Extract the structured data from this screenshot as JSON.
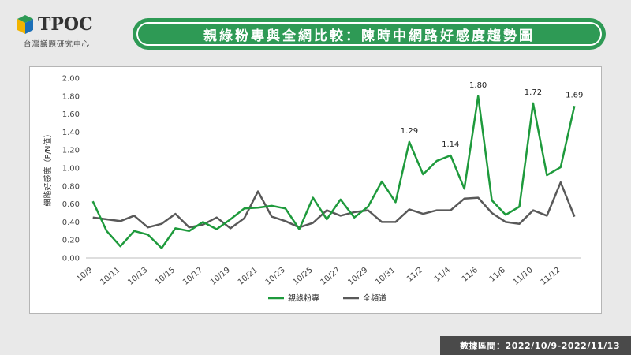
{
  "header": {
    "logo_text": "TPOC",
    "logo_subtitle": "台灣議題研究中心",
    "title": "親綠粉專與全網比較：陳時中網路好感度趨勢圖"
  },
  "footer": {
    "date_range": "數據區間：2022/10/9-2022/11/13"
  },
  "colors": {
    "accent": "#2e9a55",
    "series_green": "#1e9a3c",
    "series_gray": "#595959",
    "footer_bg": "#4a4a4a"
  },
  "chart_data": {
    "type": "line",
    "title": "",
    "ylabel": "網路好感度（P/N值）",
    "xlabel": "",
    "ylim": [
      0,
      2
    ],
    "yticks": [
      "0.00",
      "0.20",
      "0.40",
      "0.60",
      "0.80",
      "1.00",
      "1.20",
      "1.40",
      "1.60",
      "1.80",
      "2.00"
    ],
    "x": [
      "10/9",
      "10/10",
      "10/11",
      "10/12",
      "10/13",
      "10/14",
      "10/15",
      "10/16",
      "10/17",
      "10/18",
      "10/19",
      "10/20",
      "10/21",
      "10/22",
      "10/23",
      "10/24",
      "10/25",
      "10/26",
      "10/27",
      "10/28",
      "10/29",
      "10/30",
      "10/31",
      "11/1",
      "11/2",
      "11/3",
      "11/4",
      "11/5",
      "11/6",
      "11/7",
      "11/8",
      "11/9",
      "11/10",
      "11/11",
      "11/12",
      "11/13"
    ],
    "xtick_labels": [
      "10/9",
      "10/11",
      "10/13",
      "10/15",
      "10/17",
      "10/19",
      "10/21",
      "10/23",
      "10/25",
      "10/27",
      "10/29",
      "10/31",
      "11/2",
      "11/4",
      "11/6",
      "11/8",
      "11/10",
      "11/12"
    ],
    "series": [
      {
        "name": "親綠粉專",
        "color": "#1e9a3c",
        "values": [
          0.63,
          0.3,
          0.13,
          0.3,
          0.26,
          0.11,
          0.33,
          0.3,
          0.4,
          0.32,
          0.43,
          0.55,
          0.56,
          0.58,
          0.55,
          0.32,
          0.67,
          0.43,
          0.65,
          0.45,
          0.57,
          0.85,
          0.62,
          1.29,
          0.93,
          1.08,
          1.14,
          0.77,
          1.8,
          0.64,
          0.48,
          0.57,
          1.72,
          0.92,
          1.01,
          1.69
        ]
      },
      {
        "name": "全頻道",
        "color": "#595959",
        "values": [
          0.45,
          0.43,
          0.41,
          0.47,
          0.34,
          0.38,
          0.49,
          0.34,
          0.37,
          0.45,
          0.33,
          0.44,
          0.74,
          0.46,
          0.41,
          0.34,
          0.39,
          0.53,
          0.47,
          0.51,
          0.53,
          0.4,
          0.4,
          0.54,
          0.49,
          0.53,
          0.53,
          0.66,
          0.67,
          0.5,
          0.4,
          0.38,
          0.53,
          0.47,
          0.84,
          0.46
        ]
      }
    ],
    "data_labels": [
      {
        "series": 0,
        "index": 23,
        "text": "1.29"
      },
      {
        "series": 0,
        "index": 26,
        "text": "1.14"
      },
      {
        "series": 0,
        "index": 28,
        "text": "1.80"
      },
      {
        "series": 0,
        "index": 32,
        "text": "1.72"
      },
      {
        "series": 0,
        "index": 35,
        "text": "1.69"
      }
    ],
    "legend_position": "bottom",
    "grid": false
  }
}
